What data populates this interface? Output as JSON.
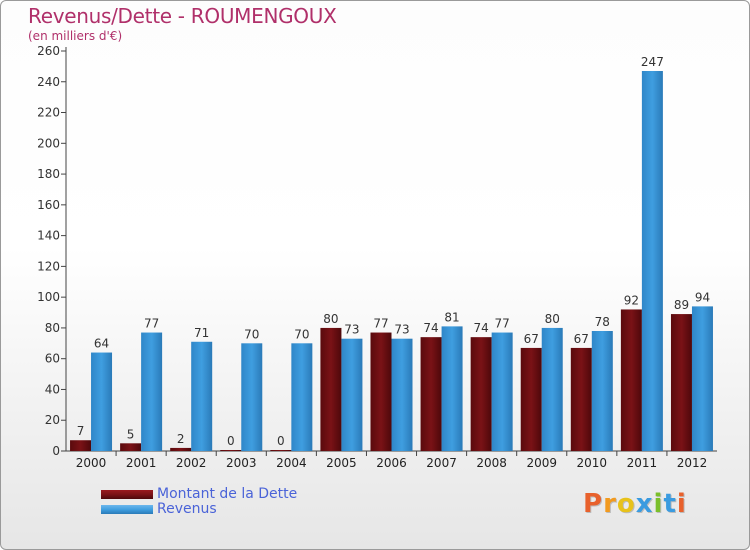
{
  "title": "Revenus/Dette - ROUMENGOUX",
  "subtitle": "(en milliers d'€)",
  "logo": [
    "P",
    "r",
    "o",
    "x",
    "i",
    "t",
    "i"
  ],
  "colors": {
    "title": "#b0306a",
    "dette": "#7a1216",
    "revenus": "#3f9ee0",
    "legend_text": "#4a63d8",
    "logo": [
      "#e8612c",
      "#f29a1f",
      "#e8c21a",
      "#3a9be0",
      "#7bbf2a",
      "#3a9be0",
      "#e8612c"
    ]
  },
  "legend": [
    {
      "label": "Montant de la Dette"
    },
    {
      "label": "Revenus"
    }
  ],
  "chart_data": {
    "type": "bar",
    "title": "Revenus/Dette - ROUMENGOUX",
    "ylabel": "(en milliers d'€)",
    "ylim": [
      0,
      260
    ],
    "yticks": [
      0,
      20,
      40,
      60,
      80,
      100,
      120,
      140,
      160,
      180,
      200,
      220,
      240,
      260
    ],
    "categories": [
      "2000",
      "2001",
      "2002",
      "2003",
      "2004",
      "2005",
      "2006",
      "2007",
      "2008",
      "2009",
      "2010",
      "2011",
      "2012"
    ],
    "series": [
      {
        "name": "Montant de la Dette",
        "values": [
          7,
          5,
          2,
          0,
          0,
          80,
          77,
          74,
          74,
          67,
          67,
          92,
          89
        ]
      },
      {
        "name": "Revenus",
        "values": [
          64,
          77,
          71,
          70,
          70,
          73,
          73,
          81,
          77,
          80,
          78,
          247,
          94
        ]
      }
    ],
    "grid": false,
    "legend_position": "bottom-left"
  }
}
